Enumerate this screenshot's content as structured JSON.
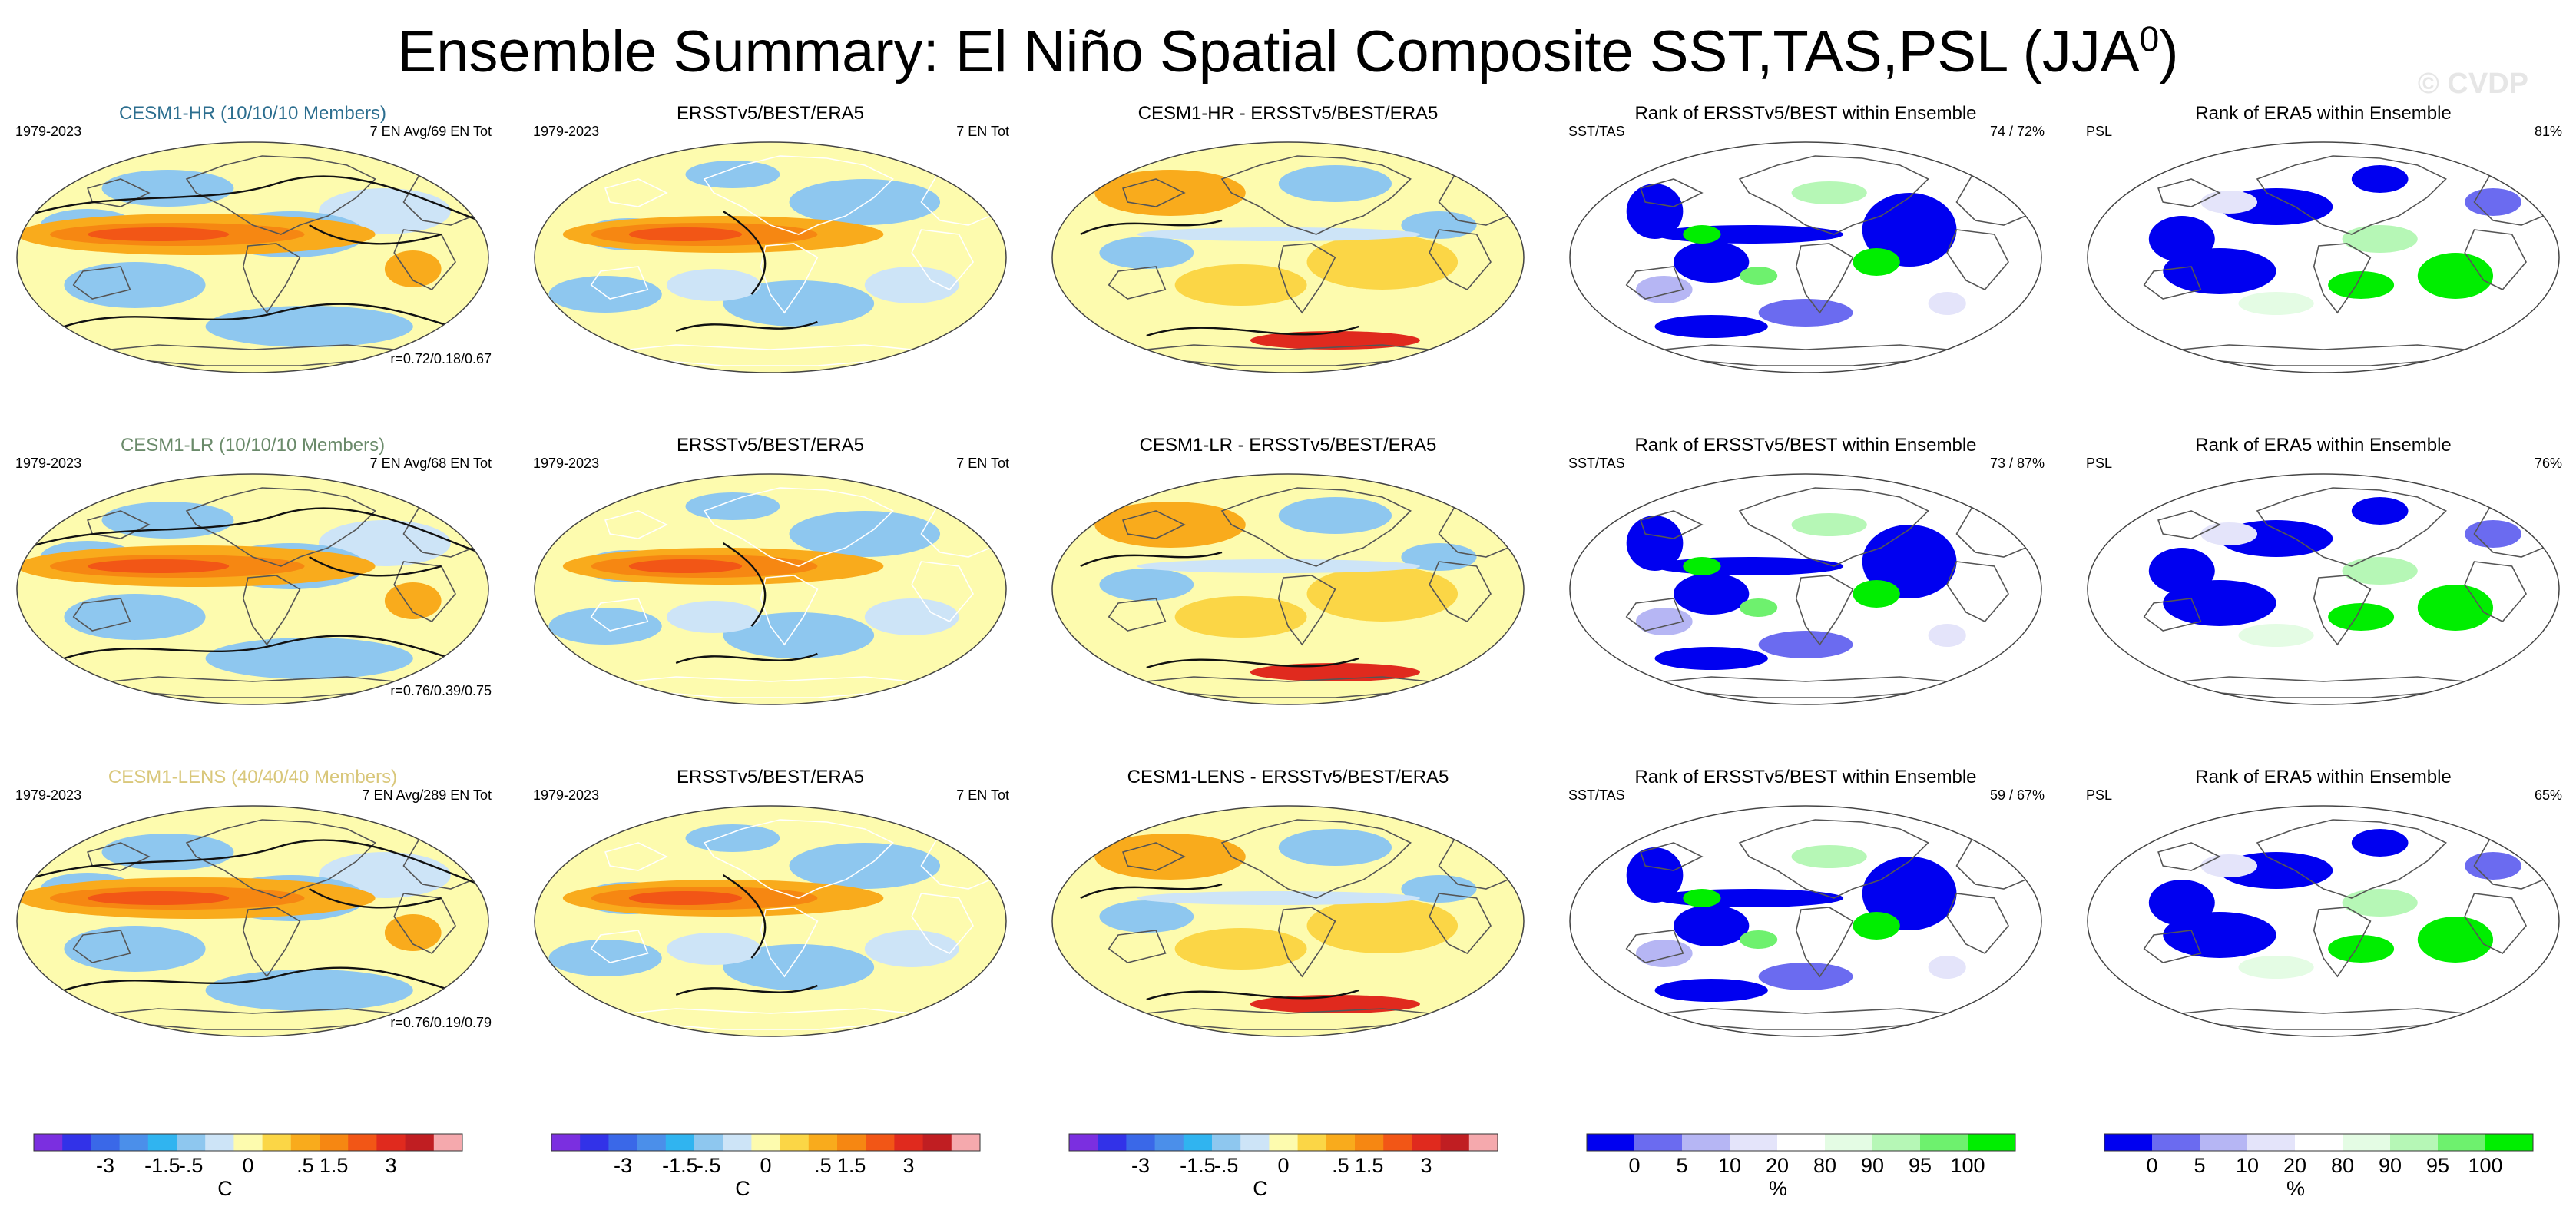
{
  "title": "Ensemble Summary: El Niño Spatial Composite SST,TAS,PSL (JJA",
  "title_superscript": "0",
  "title_close": ")",
  "watermark": "© CVDP",
  "colors": {
    "diverging": [
      "#7b2fe0",
      "#3232e8",
      "#3a68e8",
      "#4b8fea",
      "#30b4f0",
      "#8ec7ef",
      "#cde4f7",
      "#fdfbae",
      "#fbd646",
      "#f9ab1c",
      "#f68712",
      "#f25616",
      "#e02a1e",
      "#c01e22",
      "#f5a9ad"
    ],
    "rank": [
      "#0000f0",
      "#6b6bf0",
      "#b6b6f4",
      "#e4e4fa",
      "#ffffff",
      "#e4fce4",
      "#b6f7b6",
      "#6ef16e",
      "#00ee00"
    ],
    "contour": "#111111",
    "coast_model": "#555555",
    "coast_obs": "#ffffff"
  },
  "chart_data": [
    {
      "row": "CESM1-HR",
      "row_color": "#2c6e8f",
      "panels": [
        {
          "type": "map",
          "kind": "model",
          "title": "CESM1-HR (10/10/10 Members)",
          "left_label": "1979-2023",
          "right_label": "7 EN Avg/69 EN Tot",
          "corr": "r=0.72/0.18/0.67"
        },
        {
          "type": "map",
          "kind": "obs",
          "title": "ERSSTv5/BEST/ERA5",
          "left_label": "1979-2023",
          "right_label": "7 EN Tot"
        },
        {
          "type": "map",
          "kind": "diff",
          "title": "CESM1-HR - ERSSTv5/BEST/ERA5"
        },
        {
          "type": "map",
          "kind": "rank",
          "title": "Rank of ERSSTv5/BEST within Ensemble",
          "left_label": "SST/TAS",
          "right_label": "74 /  72%"
        },
        {
          "type": "map",
          "kind": "rankpsl",
          "title": "Rank of ERA5 within Ensemble",
          "left_label": "PSL",
          "right_label": "81%"
        }
      ]
    },
    {
      "row": "CESM1-LR",
      "row_color": "#6a8a6a",
      "panels": [
        {
          "type": "map",
          "kind": "model",
          "title": "CESM1-LR (10/10/10 Members)",
          "left_label": "1979-2023",
          "right_label": "7 EN Avg/68 EN Tot",
          "corr": "r=0.76/0.39/0.75"
        },
        {
          "type": "map",
          "kind": "obs",
          "title": "ERSSTv5/BEST/ERA5",
          "left_label": "1979-2023",
          "right_label": "7 EN Tot"
        },
        {
          "type": "map",
          "kind": "diff",
          "title": "CESM1-LR - ERSSTv5/BEST/ERA5"
        },
        {
          "type": "map",
          "kind": "rank",
          "title": "Rank of ERSSTv5/BEST within Ensemble",
          "left_label": "SST/TAS",
          "right_label": "73 /  87%"
        },
        {
          "type": "map",
          "kind": "rankpsl",
          "title": "Rank of ERA5 within Ensemble",
          "left_label": "PSL",
          "right_label": "76%"
        }
      ]
    },
    {
      "row": "CESM1-LENS",
      "row_color": "#d9c77a",
      "panels": [
        {
          "type": "map",
          "kind": "model",
          "title": "CESM1-LENS (40/40/40 Members)",
          "left_label": "1979-2023",
          "right_label": "7 EN Avg/289 EN Tot",
          "corr": "r=0.76/0.19/0.79"
        },
        {
          "type": "map",
          "kind": "obs",
          "title": "ERSSTv5/BEST/ERA5",
          "left_label": "1979-2023",
          "right_label": "7 EN Tot"
        },
        {
          "type": "map",
          "kind": "diff",
          "title": "CESM1-LENS - ERSSTv5/BEST/ERA5"
        },
        {
          "type": "map",
          "kind": "rank",
          "title": "Rank of ERSSTv5/BEST within Ensemble",
          "left_label": "SST/TAS",
          "right_label": "59 /  67%"
        },
        {
          "type": "map",
          "kind": "rankpsl",
          "title": "Rank of ERA5 within Ensemble",
          "left_label": "PSL",
          "right_label": "65%"
        }
      ]
    }
  ],
  "colorbars": [
    {
      "type": "diverging",
      "ticks": [
        "-3",
        "-1.5",
        "-.5",
        "0",
        ".5",
        "1.5",
        "3"
      ],
      "unit": "C"
    },
    {
      "type": "diverging",
      "ticks": [
        "-3",
        "-1.5",
        "-.5",
        "0",
        ".5",
        "1.5",
        "3"
      ],
      "unit": "C"
    },
    {
      "type": "diverging",
      "ticks": [
        "-3",
        "-1.5",
        "-.5",
        "0",
        ".5",
        "1.5",
        "3"
      ],
      "unit": "C"
    },
    {
      "type": "rank",
      "ticks": [
        "0",
        "5",
        "10",
        "20",
        "80",
        "90",
        "95",
        "100"
      ],
      "unit": "%"
    },
    {
      "type": "rank",
      "ticks": [
        "0",
        "5",
        "10",
        "20",
        "80",
        "90",
        "95",
        "100"
      ],
      "unit": "%"
    }
  ]
}
